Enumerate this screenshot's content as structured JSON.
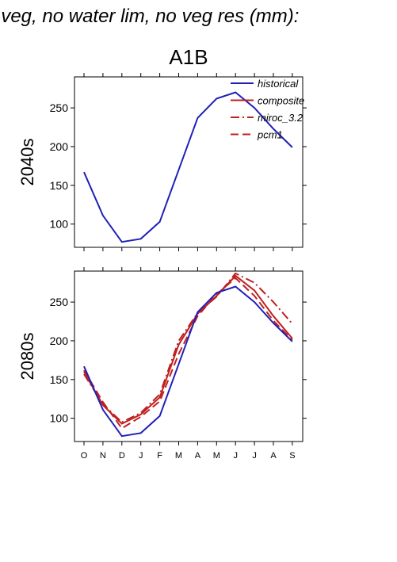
{
  "figure": {
    "title": "f veg, no water lim, no veg res (mm):",
    "scenario": "A1B"
  },
  "chart_data": [
    {
      "type": "line",
      "row_label": "2040s",
      "categories": [
        "O",
        "N",
        "D",
        "J",
        "F",
        "M",
        "A",
        "M",
        "J",
        "J",
        "A",
        "S"
      ],
      "ylim": [
        70,
        290
      ],
      "yticks": [
        100,
        150,
        200,
        250
      ],
      "legend": {
        "placement": "top-right",
        "entries": [
          "historical",
          "composite",
          "miroc_3.2",
          "pcm1"
        ]
      },
      "series": [
        {
          "name": "historical",
          "color": "#2020b8",
          "dash": "solid",
          "values": [
            167,
            111,
            77,
            81,
            103,
            170,
            237,
            262,
            270,
            250,
            223,
            199
          ]
        }
      ]
    },
    {
      "type": "line",
      "row_label": "2080s",
      "categories": [
        "O",
        "N",
        "D",
        "J",
        "F",
        "M",
        "A",
        "M",
        "J",
        "J",
        "A",
        "S"
      ],
      "ylim": [
        70,
        290
      ],
      "yticks": [
        100,
        150,
        200,
        250
      ],
      "series": [
        {
          "name": "historical",
          "color": "#2020b8",
          "dash": "solid",
          "values": [
            167,
            111,
            77,
            81,
            103,
            170,
            237,
            262,
            270,
            250,
            223,
            199
          ]
        },
        {
          "name": "composite",
          "color": "#c02020",
          "dash": "solid",
          "values": [
            160,
            117,
            93,
            105,
            127,
            195,
            235,
            258,
            284,
            265,
            232,
            203
          ]
        },
        {
          "name": "miroc_3.2",
          "color": "#c02020",
          "dash": "dashdot",
          "values": [
            157,
            118,
            95,
            107,
            131,
            200,
            236,
            257,
            287,
            275,
            250,
            222
          ]
        },
        {
          "name": "pcm1",
          "color": "#c02020",
          "dash": "dashed",
          "values": [
            162,
            121,
            87,
            102,
            122,
            183,
            232,
            260,
            281,
            258,
            226,
            201
          ]
        }
      ]
    }
  ]
}
